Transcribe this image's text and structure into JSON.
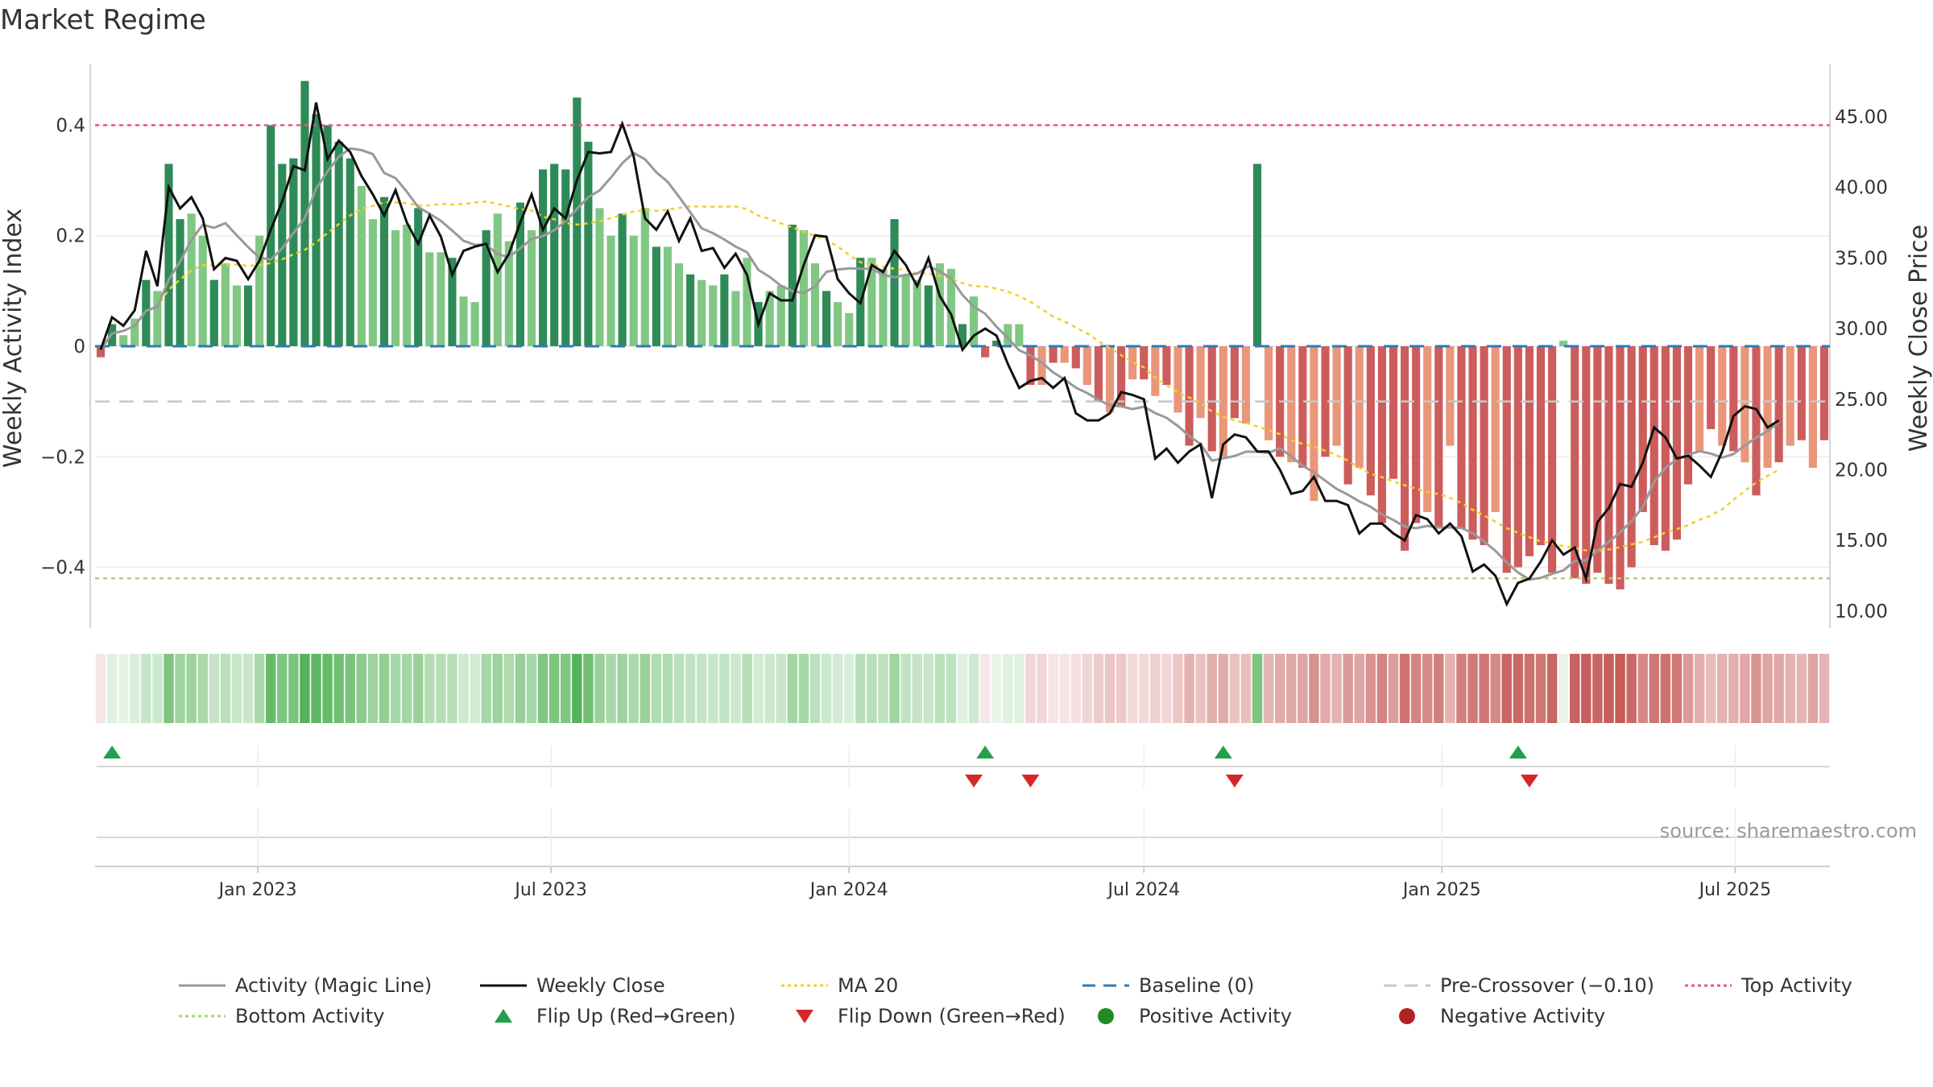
{
  "title": "Market Regime",
  "source": "source: sharemaestro.com",
  "colors": {
    "pos_dark": "#2e8b57",
    "pos_light": "#81c784",
    "neg_dark": "#cd5c5c",
    "neg_light": "#e9967a",
    "magic": "#999999",
    "close": "#111111",
    "ma": "#f2d027",
    "baseline": "#2f7ab9",
    "precross": "#c8c8c8",
    "top": "#e8577e",
    "bottom": "#a8d86e",
    "flip_up": "#22a04b",
    "flip_down": "#d62728",
    "pos_dot": "#228b22",
    "neg_dot": "#b22222"
  },
  "chart_data": {
    "type": "bar",
    "start_date": "2022-09-26",
    "weeks": 153,
    "y_left": {
      "label": "Weekly Activity Index",
      "range": [
        -0.51,
        0.51
      ],
      "ticks": [
        0.4,
        0.2,
        0,
        -0.2,
        -0.4
      ],
      "tick_labels": [
        "0.4",
        "0.2",
        "0",
        "−0.2",
        "−0.4"
      ]
    },
    "y_right": {
      "label": "Weekly Close Price",
      "range": [
        8.8,
        48.7
      ],
      "ticks": [
        45,
        40,
        35,
        30,
        25,
        20,
        15,
        10
      ],
      "tick_labels": [
        "45.00",
        "40.00",
        "35.00",
        "30.00",
        "25.00",
        "20.00",
        "15.00",
        "10.00"
      ]
    },
    "x_ticks": [
      {
        "date": "2023-01-01",
        "label": "Jan 2023"
      },
      {
        "date": "2023-07-01",
        "label": "Jul 2023"
      },
      {
        "date": "2024-01-01",
        "label": "Jan 2024"
      },
      {
        "date": "2024-07-01",
        "label": "Jul 2024"
      },
      {
        "date": "2025-01-01",
        "label": "Jan 2025"
      },
      {
        "date": "2025-07-01",
        "label": "Jul 2025"
      }
    ],
    "levels": {
      "baseline": 0,
      "pre_crossover": -0.1,
      "top": 0.4,
      "bottom": -0.42
    },
    "activity_anchors": [
      [
        0,
        -0.02
      ],
      [
        1,
        0.04
      ],
      [
        2,
        0.02
      ],
      [
        3,
        0.05
      ],
      [
        4,
        0.12
      ],
      [
        5,
        0.1
      ],
      [
        6,
        0.33
      ],
      [
        7,
        0.23
      ],
      [
        8,
        0.24
      ],
      [
        9,
        0.2
      ],
      [
        10,
        0.12
      ],
      [
        11,
        0.15
      ],
      [
        12,
        0.11
      ],
      [
        13,
        0.11
      ],
      [
        14,
        0.2
      ],
      [
        15,
        0.4
      ],
      [
        16,
        0.33
      ],
      [
        17,
        0.34
      ],
      [
        18,
        0.48
      ],
      [
        19,
        0.42
      ],
      [
        20,
        0.4
      ],
      [
        21,
        0.37
      ],
      [
        22,
        0.34
      ],
      [
        23,
        0.29
      ],
      [
        24,
        0.23
      ],
      [
        25,
        0.27
      ],
      [
        26,
        0.21
      ],
      [
        27,
        0.22
      ],
      [
        28,
        0.25
      ],
      [
        29,
        0.17
      ],
      [
        30,
        0.17
      ],
      [
        31,
        0.16
      ],
      [
        32,
        0.09
      ],
      [
        33,
        0.08
      ],
      [
        34,
        0.21
      ],
      [
        35,
        0.24
      ],
      [
        36,
        0.19
      ],
      [
        37,
        0.26
      ],
      [
        38,
        0.21
      ],
      [
        39,
        0.32
      ],
      [
        40,
        0.33
      ],
      [
        41,
        0.32
      ],
      [
        42,
        0.45
      ],
      [
        43,
        0.37
      ],
      [
        44,
        0.25
      ],
      [
        45,
        0.2
      ],
      [
        46,
        0.24
      ],
      [
        47,
        0.2
      ],
      [
        48,
        0.25
      ],
      [
        49,
        0.18
      ],
      [
        50,
        0.18
      ],
      [
        51,
        0.15
      ],
      [
        52,
        0.13
      ],
      [
        53,
        0.12
      ],
      [
        54,
        0.11
      ],
      [
        55,
        0.13
      ],
      [
        56,
        0.1
      ],
      [
        57,
        0.16
      ],
      [
        58,
        0.08
      ],
      [
        59,
        0.1
      ],
      [
        60,
        0.11
      ],
      [
        61,
        0.22
      ],
      [
        62,
        0.21
      ],
      [
        63,
        0.15
      ],
      [
        64,
        0.1
      ],
      [
        65,
        0.08
      ],
      [
        66,
        0.06
      ],
      [
        67,
        0.16
      ],
      [
        68,
        0.16
      ],
      [
        69,
        0.14
      ],
      [
        70,
        0.23
      ],
      [
        71,
        0.13
      ],
      [
        72,
        0.12
      ],
      [
        73,
        0.11
      ],
      [
        74,
        0.15
      ],
      [
        75,
        0.14
      ],
      [
        76,
        0.04
      ],
      [
        77,
        0.09
      ],
      [
        78,
        -0.02
      ],
      [
        79,
        0.01
      ],
      [
        80,
        0.04
      ],
      [
        81,
        0.04
      ],
      [
        82,
        -0.07
      ],
      [
        83,
        -0.07
      ],
      [
        84,
        -0.03
      ],
      [
        85,
        -0.03
      ],
      [
        86,
        -0.04
      ],
      [
        87,
        -0.07
      ],
      [
        88,
        -0.1
      ],
      [
        89,
        -0.12
      ],
      [
        90,
        -0.11
      ],
      [
        91,
        -0.06
      ],
      [
        92,
        -0.06
      ],
      [
        93,
        -0.09
      ],
      [
        94,
        -0.07
      ],
      [
        95,
        -0.12
      ],
      [
        96,
        -0.18
      ],
      [
        97,
        -0.13
      ],
      [
        98,
        -0.19
      ],
      [
        99,
        -0.2
      ],
      [
        100,
        -0.13
      ],
      [
        101,
        -0.14
      ],
      [
        102,
        0.33
      ],
      [
        103,
        -0.17
      ],
      [
        104,
        -0.2
      ],
      [
        105,
        -0.21
      ],
      [
        106,
        -0.22
      ],
      [
        107,
        -0.28
      ],
      [
        108,
        -0.2
      ],
      [
        109,
        -0.18
      ],
      [
        110,
        -0.25
      ],
      [
        111,
        -0.22
      ],
      [
        112,
        -0.27
      ],
      [
        113,
        -0.32
      ],
      [
        114,
        -0.24
      ],
      [
        115,
        -0.37
      ],
      [
        116,
        -0.32
      ],
      [
        117,
        -0.3
      ],
      [
        118,
        -0.33
      ],
      [
        119,
        -0.18
      ],
      [
        120,
        -0.33
      ],
      [
        121,
        -0.35
      ],
      [
        122,
        -0.36
      ],
      [
        123,
        -0.3
      ],
      [
        124,
        -0.41
      ],
      [
        125,
        -0.4
      ],
      [
        126,
        -0.38
      ],
      [
        127,
        -0.36
      ],
      [
        128,
        -0.41
      ],
      [
        129,
        0.01
      ],
      [
        130,
        -0.42
      ],
      [
        131,
        -0.43
      ],
      [
        132,
        -0.41
      ],
      [
        133,
        -0.43
      ],
      [
        134,
        -0.44
      ],
      [
        135,
        -0.4
      ],
      [
        136,
        -0.3
      ],
      [
        137,
        -0.36
      ],
      [
        138,
        -0.37
      ],
      [
        139,
        -0.35
      ],
      [
        140,
        -0.25
      ],
      [
        141,
        -0.19
      ],
      [
        142,
        -0.15
      ],
      [
        143,
        -0.18
      ],
      [
        144,
        -0.19
      ],
      [
        145,
        -0.21
      ],
      [
        146,
        -0.27
      ],
      [
        147,
        -0.22
      ],
      [
        148,
        -0.21
      ],
      [
        149,
        -0.18
      ],
      [
        150,
        -0.17
      ],
      [
        151,
        -0.22
      ],
      [
        152,
        -0.17
      ]
    ],
    "close_anchors": [
      [
        0,
        28.5
      ],
      [
        1,
        30.8
      ],
      [
        2,
        30.2
      ],
      [
        3,
        31.3
      ],
      [
        4,
        35.5
      ],
      [
        5,
        33.0
      ],
      [
        6,
        40.0
      ],
      [
        7,
        38.5
      ],
      [
        8,
        39.3
      ],
      [
        9,
        37.8
      ],
      [
        10,
        34.2
      ],
      [
        11,
        35.0
      ],
      [
        12,
        34.8
      ],
      [
        13,
        33.5
      ],
      [
        14,
        34.8
      ],
      [
        15,
        37.0
      ],
      [
        16,
        39.0
      ],
      [
        17,
        41.5
      ],
      [
        18,
        41.2
      ],
      [
        19,
        46.0
      ],
      [
        20,
        42.0
      ],
      [
        21,
        43.3
      ],
      [
        22,
        42.5
      ],
      [
        23,
        40.8
      ],
      [
        24,
        39.5
      ],
      [
        25,
        38.0
      ],
      [
        26,
        39.8
      ],
      [
        27,
        37.5
      ],
      [
        28,
        36.0
      ],
      [
        29,
        38.0
      ],
      [
        30,
        36.5
      ],
      [
        31,
        33.8
      ],
      [
        32,
        35.5
      ],
      [
        33,
        35.8
      ],
      [
        34,
        36.0
      ],
      [
        35,
        34.0
      ],
      [
        36,
        35.3
      ],
      [
        37,
        37.5
      ],
      [
        38,
        39.5
      ],
      [
        39,
        37.0
      ],
      [
        40,
        38.5
      ],
      [
        41,
        37.8
      ],
      [
        42,
        40.5
      ],
      [
        43,
        42.5
      ],
      [
        44,
        42.4
      ],
      [
        45,
        42.5
      ],
      [
        46,
        44.5
      ],
      [
        47,
        42.2
      ],
      [
        48,
        37.8
      ],
      [
        49,
        37.0
      ],
      [
        50,
        38.3
      ],
      [
        51,
        36.2
      ],
      [
        52,
        37.8
      ],
      [
        53,
        35.5
      ],
      [
        54,
        35.7
      ],
      [
        55,
        34.3
      ],
      [
        56,
        35.3
      ],
      [
        57,
        33.8
      ],
      [
        58,
        30.3
      ],
      [
        59,
        32.5
      ],
      [
        60,
        32.0
      ],
      [
        61,
        32.0
      ],
      [
        62,
        34.5
      ],
      [
        63,
        36.6
      ],
      [
        64,
        36.5
      ],
      [
        65,
        33.5
      ],
      [
        66,
        32.5
      ],
      [
        67,
        31.8
      ],
      [
        68,
        34.5
      ],
      [
        69,
        34.0
      ],
      [
        70,
        35.5
      ],
      [
        71,
        34.5
      ],
      [
        72,
        33.0
      ],
      [
        73,
        35.0
      ],
      [
        74,
        32.3
      ],
      [
        75,
        31.0
      ],
      [
        76,
        28.5
      ],
      [
        77,
        29.5
      ],
      [
        78,
        30.0
      ],
      [
        79,
        29.5
      ],
      [
        80,
        27.5
      ],
      [
        81,
        25.8
      ],
      [
        82,
        26.3
      ],
      [
        83,
        26.5
      ],
      [
        84,
        25.8
      ],
      [
        85,
        26.5
      ],
      [
        86,
        24.0
      ],
      [
        87,
        23.5
      ],
      [
        88,
        23.5
      ],
      [
        89,
        24.0
      ],
      [
        90,
        25.5
      ],
      [
        91,
        25.3
      ],
      [
        92,
        25.0
      ],
      [
        93,
        20.8
      ],
      [
        94,
        21.5
      ],
      [
        95,
        20.5
      ],
      [
        96,
        21.3
      ],
      [
        97,
        21.8
      ],
      [
        98,
        18.0
      ],
      [
        99,
        21.8
      ],
      [
        100,
        22.5
      ],
      [
        101,
        22.3
      ],
      [
        102,
        21.3
      ],
      [
        103,
        21.3
      ],
      [
        104,
        20.0
      ],
      [
        105,
        18.3
      ],
      [
        106,
        18.5
      ],
      [
        107,
        19.5
      ],
      [
        108,
        17.8
      ],
      [
        109,
        17.8
      ],
      [
        110,
        17.5
      ],
      [
        111,
        15.5
      ],
      [
        112,
        16.2
      ],
      [
        113,
        16.2
      ],
      [
        114,
        15.5
      ],
      [
        115,
        15.0
      ],
      [
        116,
        16.8
      ],
      [
        117,
        16.5
      ],
      [
        118,
        15.5
      ],
      [
        119,
        16.2
      ],
      [
        120,
        15.3
      ],
      [
        121,
        12.8
      ],
      [
        122,
        13.3
      ],
      [
        123,
        12.5
      ],
      [
        124,
        10.5
      ],
      [
        125,
        12.0
      ],
      [
        126,
        12.3
      ],
      [
        127,
        13.5
      ],
      [
        128,
        15.0
      ],
      [
        129,
        14.0
      ],
      [
        130,
        14.5
      ],
      [
        131,
        12.3
      ],
      [
        132,
        16.3
      ],
      [
        133,
        17.3
      ],
      [
        134,
        19.0
      ],
      [
        135,
        18.8
      ],
      [
        136,
        20.5
      ],
      [
        137,
        23.0
      ],
      [
        138,
        22.3
      ],
      [
        139,
        20.8
      ],
      [
        140,
        21.0
      ],
      [
        141,
        20.3
      ],
      [
        142,
        19.5
      ],
      [
        143,
        21.3
      ],
      [
        144,
        23.8
      ],
      [
        145,
        24.5
      ],
      [
        146,
        24.3
      ],
      [
        147,
        23.0
      ],
      [
        148,
        23.5
      ]
    ],
    "flip_up_weeks": [
      1,
      78,
      99,
      125
    ],
    "flip_down_weeks": [
      77,
      82,
      100,
      126
    ]
  },
  "legend": [
    {
      "type": "line",
      "color": "#999999",
      "dash": "",
      "label": "Activity (Magic Line)"
    },
    {
      "type": "line",
      "color": "#111111",
      "dash": "",
      "label": "Weekly Close"
    },
    {
      "type": "line",
      "color": "#f2d027",
      "dash": "4,4",
      "label": "MA 20"
    },
    {
      "type": "line",
      "color": "#2f7ab9",
      "dash": "16,10",
      "label": "Baseline (0)"
    },
    {
      "type": "line",
      "color": "#c8c8c8",
      "dash": "16,10",
      "label": "Pre-Crossover (−0.10)"
    },
    {
      "type": "line",
      "color": "#e8577e",
      "dash": "4,4",
      "label": "Top Activity"
    },
    {
      "type": "line",
      "color": "#a8d86e",
      "dash": "4,4",
      "label": "Bottom Activity"
    },
    {
      "type": "tri-up",
      "color": "#22a04b",
      "label": "Flip Up (Red→Green)"
    },
    {
      "type": "tri-down",
      "color": "#d62728",
      "label": "Flip Down (Green→Red)"
    },
    {
      "type": "dot",
      "color": "#228b22",
      "label": "Positive Activity"
    },
    {
      "type": "dot",
      "color": "#b22222",
      "label": "Negative Activity"
    }
  ]
}
